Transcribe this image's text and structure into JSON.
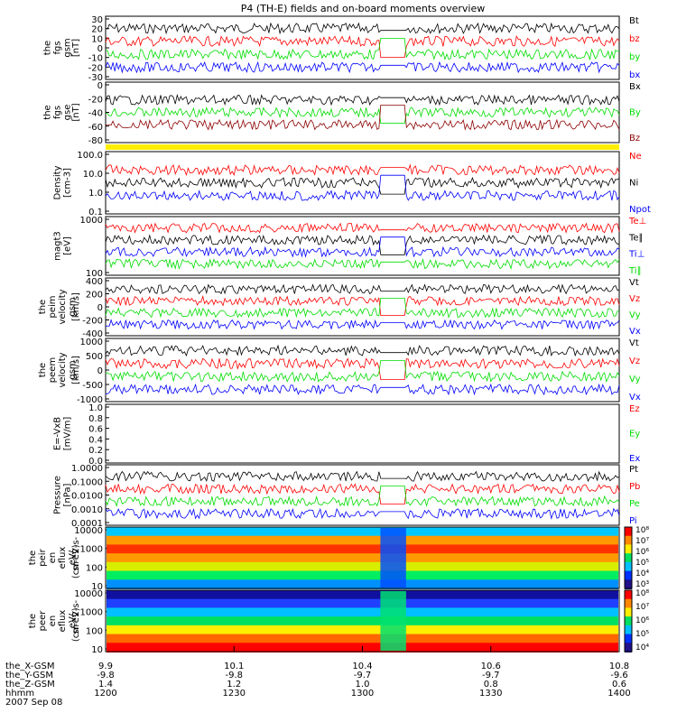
{
  "title": "P4 (TH-E) fields and on-board moments overview",
  "colors": {
    "black": "#000000",
    "red": "#ff0000",
    "green": "#00dd00",
    "blue": "#0000ff",
    "darkred": "#8b0000",
    "yellow": "#ffee00"
  },
  "chart_data": {
    "type": "line",
    "x_ticks": [
      "1200",
      "1230",
      "1300",
      "1330",
      "1400"
    ],
    "orbit_rows": [
      {
        "label": "the_X-GSM",
        "values": [
          "9.9",
          "10.1",
          "10.4",
          "10.6",
          "10.8"
        ]
      },
      {
        "label": "the_Y-GSM",
        "values": [
          "-9.8",
          "-9.8",
          "-9.7",
          "-9.7",
          "-9.6"
        ]
      },
      {
        "label": "the_Z-GSM",
        "values": [
          "1.4",
          "1.2",
          "1.0",
          "0.8",
          "0.6"
        ]
      },
      {
        "label": "hhmm",
        "values": [
          "1200",
          "1230",
          "1300",
          "1330",
          "1400"
        ]
      }
    ],
    "date": "2007 Sep 08",
    "panels": [
      {
        "kind": "line",
        "ylabel": [
          "the",
          "fgs",
          "gsm",
          "[nT]"
        ],
        "yticks": [
          "30",
          "20",
          "10",
          "0",
          "-10",
          "-20",
          "-30"
        ],
        "series": [
          {
            "name": "Bt",
            "color": "#000000",
            "base": 22,
            "noise": 4,
            "event": 30
          },
          {
            "name": "bz",
            "color": "#ff0000",
            "base": 8,
            "noise": 5,
            "event": 28
          },
          {
            "name": "by",
            "color": "#00dd00",
            "base": -2,
            "noise": 5,
            "event": 8
          },
          {
            "name": "bx",
            "color": "#0000ff",
            "base": -6,
            "noise": 4,
            "event": 0
          }
        ]
      },
      {
        "kind": "line",
        "ylabel": [
          "the",
          "fgs",
          "gse",
          "[nT]"
        ],
        "yticks": [
          "0",
          "-20",
          "-40",
          "-60",
          "-80"
        ],
        "series": [
          {
            "name": "Bx",
            "color": "#000000",
            "base": -12,
            "noise": 4,
            "event": -4
          },
          {
            "name": "By",
            "color": "#00dd00",
            "base": -22,
            "noise": 4,
            "event": -6
          },
          {
            "name": "Bz",
            "color": "#8b0000",
            "base": -40,
            "noise": 6,
            "event": -18
          }
        ]
      },
      {
        "kind": "band",
        "color": "#ffee00"
      },
      {
        "kind": "line",
        "ylabel": [
          "Density",
          "[cm-3]"
        ],
        "yticks": [
          "100.0",
          "10.0",
          "1.0",
          "0.1"
        ],
        "series": [
          {
            "name": "Ne",
            "color": "#ff0000",
            "base": 10,
            "noise": 2,
            "event": 0.5
          },
          {
            "name": "Ni",
            "color": "#000000",
            "base": 9,
            "noise": 2,
            "event": 0.3
          },
          {
            "name": "Npot",
            "color": "#0000ff",
            "base": 4,
            "noise": 0.4,
            "event": 2
          }
        ]
      },
      {
        "kind": "line",
        "ylabel": [
          "magt3",
          "[eV]"
        ],
        "yticks": [
          "1000",
          "100"
        ],
        "series": [
          {
            "name": "Te⊥",
            "color": "#ff0000",
            "base": 60,
            "noise": 8,
            "event": 800
          },
          {
            "name": "Te∥",
            "color": "#000000",
            "base": 45,
            "noise": 6,
            "event": 700
          },
          {
            "name": "Ti⊥",
            "color": "#0000ff",
            "base": 550,
            "noise": 80,
            "event": 1500
          },
          {
            "name": "Ti∥",
            "color": "#00dd00",
            "base": 480,
            "noise": 70,
            "event": 1300
          }
        ]
      },
      {
        "kind": "line",
        "ylabel": [
          "the",
          "peim",
          "velocity",
          "gsm",
          "[km/s]"
        ],
        "yticks": [
          "400",
          "200",
          "0",
          "-200",
          "-400"
        ],
        "series": [
          {
            "name": "Vt",
            "color": "#000000",
            "base": 200,
            "noise": 40,
            "event": 40
          },
          {
            "name": "Vz",
            "color": "#ff0000",
            "base": 60,
            "noise": 40,
            "event": 20
          },
          {
            "name": "Vy",
            "color": "#00dd00",
            "base": -90,
            "noise": 50,
            "event": -10
          },
          {
            "name": "Vx",
            "color": "#0000ff",
            "base": -130,
            "noise": 50,
            "event": -20
          }
        ]
      },
      {
        "kind": "line",
        "ylabel": [
          "the",
          "peem",
          "velocity",
          "gsm",
          "[km/s]"
        ],
        "yticks": [
          "1000",
          "500",
          "0",
          "-500",
          "-1000"
        ],
        "series": [
          {
            "name": "Vt",
            "color": "#000000",
            "base": 240,
            "noise": 90,
            "event": 60
          },
          {
            "name": "Vz",
            "color": "#ff0000",
            "base": 60,
            "noise": 90,
            "event": 20
          },
          {
            "name": "Vy",
            "color": "#00dd00",
            "base": -100,
            "noise": 90,
            "event": -20
          },
          {
            "name": "Vx",
            "color": "#0000ff",
            "base": -150,
            "noise": 120,
            "event": -30
          }
        ]
      },
      {
        "kind": "line",
        "ylabel": [
          "E=-VxB",
          "[mV/m]"
        ],
        "yticks": [
          "1.0",
          "0.8",
          "0.6",
          "0.4",
          "0.2",
          "0.0"
        ],
        "series": [
          {
            "name": "Ez",
            "color": "#ff0000"
          },
          {
            "name": "Ey",
            "color": "#00dd00"
          },
          {
            "name": "Ex",
            "color": "#0000ff"
          }
        ]
      },
      {
        "kind": "line",
        "ylabel": [
          "Pressure",
          "[nPa]"
        ],
        "yticks": [
          "1.0000",
          "0.1000",
          "0.0100",
          "0.0010",
          "0.0001"
        ],
        "series": [
          {
            "name": "Pt",
            "color": "#000000",
            "base": 0.5,
            "noise": 0.1,
            "event": 0.45
          },
          {
            "name": "Pb",
            "color": "#ff0000",
            "base": 0.08,
            "noise": 0.03,
            "event": 0.35
          },
          {
            "name": "Pe",
            "color": "#00dd00",
            "base": 0.09,
            "noise": 0.01,
            "event": 0.02
          },
          {
            "name": "Pi",
            "color": "#0000ff",
            "base": 0.4,
            "noise": 0.08,
            "event": 0.05
          }
        ]
      },
      {
        "kind": "spec",
        "ylabel": [
          "the",
          "peir",
          "en",
          "eflux",
          "eV/",
          "(cm^2-s-",
          "sr-eV)"
        ],
        "yticks": [
          "10000",
          "1000",
          "100",
          "10"
        ],
        "cbar": [
          "10⁸",
          "10⁷",
          "10⁶",
          "10⁵",
          "10⁴",
          "10³"
        ]
      },
      {
        "kind": "spec",
        "ylabel": [
          "the",
          "peer",
          "en",
          "eflux",
          "eV/",
          "(cm^2-s-",
          "sr-eV)"
        ],
        "yticks": [
          "10000",
          "1000",
          "100",
          "10"
        ],
        "cbar": [
          "10⁸",
          "10⁷",
          "10⁶",
          "10⁵",
          "10⁴"
        ]
      }
    ]
  }
}
